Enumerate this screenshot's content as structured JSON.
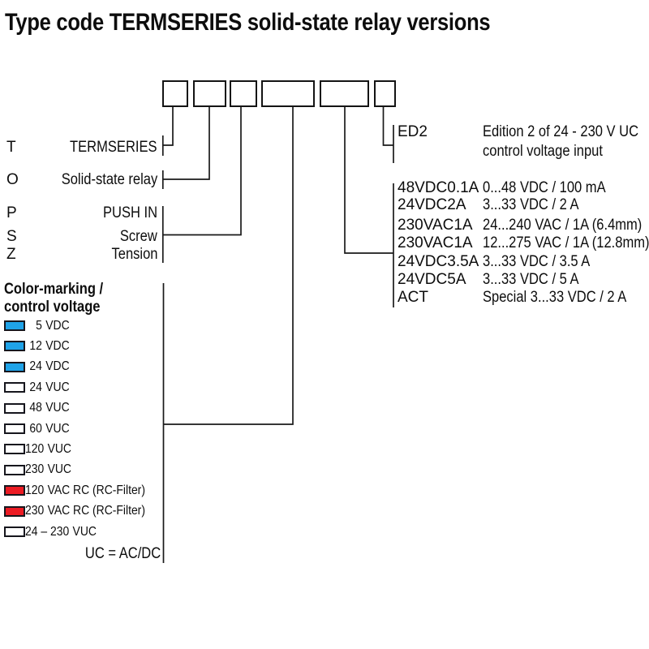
{
  "title": "Type code TERMSERIES solid-state relay versions",
  "left_codes": [
    {
      "letter": "T",
      "label": "TERMSERIES"
    },
    {
      "letter": "O",
      "label": "Solid-state relay"
    },
    {
      "letter": "P",
      "label": "PUSH IN"
    },
    {
      "letter": "S",
      "label": "Screw"
    },
    {
      "letter": "Z",
      "label": "Tension"
    }
  ],
  "edition": {
    "code": "ED2",
    "desc_line1": "Edition 2 of 24 - 230 V UC",
    "desc_line2": "control voltage input"
  },
  "variants": [
    {
      "code": "48VDC0.1A",
      "desc": "0...48 VDC / 100 mA"
    },
    {
      "code": "24VDC2A",
      "desc": "3...33 VDC / 2 A"
    },
    {
      "code": "230VAC1A",
      "desc": "24...240 VAC / 1A (6.4mm)"
    },
    {
      "code": "230VAC1A",
      "desc": "12...275 VAC / 1A (12.8mm)"
    },
    {
      "code": "24VDC3.5A",
      "desc": "3...33 VDC / 3.5 A"
    },
    {
      "code": "24VDC5A",
      "desc": "3...33 VDC / 5 A"
    },
    {
      "code": "ACT",
      "desc": "Special 3...33 VDC / 2 A"
    }
  ],
  "color_legend": {
    "heading_line1": "Color-marking /",
    "heading_line2": "control voltage",
    "items": [
      {
        "num": "5",
        "unit": "VDC",
        "color": "blue"
      },
      {
        "num": "12",
        "unit": "VDC",
        "color": "blue"
      },
      {
        "num": "24",
        "unit": "VDC",
        "color": "blue"
      },
      {
        "num": "24",
        "unit": "VUC",
        "color": "white"
      },
      {
        "num": "48",
        "unit": "VUC",
        "color": "white"
      },
      {
        "num": "60",
        "unit": "VUC",
        "color": "white"
      },
      {
        "num": "120",
        "unit": "VUC",
        "color": "white"
      },
      {
        "num": "230",
        "unit": "VUC",
        "color": "white"
      },
      {
        "num": "120",
        "unit": "VAC RC (RC-Filter)",
        "color": "red"
      },
      {
        "num": "230",
        "unit": "VAC RC (RC-Filter)",
        "color": "red"
      },
      {
        "num": "24 – 230",
        "unit": "VUC",
        "color": "white"
      }
    ],
    "footnote": "UC = AC/DC"
  },
  "colors": {
    "blue": "#1fa3e8",
    "red": "#ec1c24",
    "white": "#ffffff"
  }
}
